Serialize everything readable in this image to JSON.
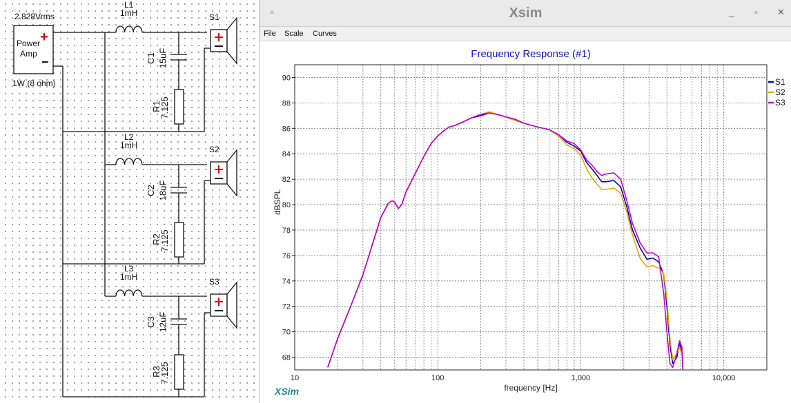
{
  "schematic": {
    "source": {
      "voltage": "2.828Vrms",
      "label_line1": "Power",
      "label_line2": "Amp",
      "plus": "+",
      "minus": "−",
      "load": "1W (8 ohm)"
    },
    "branches": [
      {
        "inductor": "L1",
        "inductor_value": "1mH",
        "capacitor": "C1",
        "capacitor_value": "15uF",
        "resistor": "R1",
        "resistor_value": "7.125",
        "speaker": "S1"
      },
      {
        "inductor": "L2",
        "inductor_value": "1mH",
        "capacitor": "C2",
        "capacitor_value": "18uF",
        "resistor": "R2",
        "resistor_value": "7.125",
        "speaker": "S2"
      },
      {
        "inductor": "L3",
        "inductor_value": "1mH",
        "capacitor": "C3",
        "capacitor_value": "12uF",
        "resistor": "R3",
        "resistor_value": "7.125",
        "speaker": "S3"
      }
    ]
  },
  "window": {
    "title": "Xsim",
    "buttons": {
      "menu": "▫",
      "minimize": "_",
      "maximize": "▫",
      "close": "✕"
    },
    "menu": [
      {
        "label": "File"
      },
      {
        "label": "Scale"
      },
      {
        "label": "Curves"
      }
    ],
    "brand": "XSim"
  },
  "chart_data": {
    "type": "line",
    "title": "Frequency Response (#1)",
    "xlabel": "frequency [Hz]",
    "ylabel": "dBSPL",
    "xscale": "log",
    "xlim": [
      10,
      20000
    ],
    "ylim": [
      67,
      91
    ],
    "x_ticks": [
      {
        "v": 10,
        "label": "10"
      },
      {
        "v": 100,
        "label": "100"
      },
      {
        "v": 1000,
        "label": "1,000"
      },
      {
        "v": 10000,
        "label": "10,000"
      }
    ],
    "y_ticks": [
      68,
      70,
      72,
      74,
      76,
      78,
      80,
      82,
      84,
      86,
      88,
      90
    ],
    "grid": true,
    "legend_position": "right",
    "colors": {
      "title": "#1010d0",
      "S1": "#0000cc",
      "S2": "#e0a800",
      "S3": "#cc00cc",
      "grid": "#777777"
    },
    "series": [
      {
        "name": "S1",
        "color": "#0000cc",
        "points": [
          [
            17,
            67.2
          ],
          [
            20,
            69.5
          ],
          [
            25,
            72.2
          ],
          [
            30,
            74.5
          ],
          [
            35,
            76.9
          ],
          [
            40,
            79.0
          ],
          [
            45,
            80.1
          ],
          [
            48,
            80.3
          ],
          [
            50,
            80.2
          ],
          [
            53,
            79.7
          ],
          [
            56,
            80.0
          ],
          [
            60,
            81.0
          ],
          [
            70,
            82.5
          ],
          [
            80,
            83.8
          ],
          [
            90,
            84.8
          ],
          [
            100,
            85.4
          ],
          [
            110,
            85.8
          ],
          [
            120,
            86.1
          ],
          [
            130,
            86.2
          ],
          [
            150,
            86.5
          ],
          [
            170,
            86.8
          ],
          [
            200,
            87.0
          ],
          [
            230,
            87.2
          ],
          [
            260,
            87.1
          ],
          [
            300,
            86.9
          ],
          [
            350,
            86.7
          ],
          [
            400,
            86.4
          ],
          [
            500,
            86.1
          ],
          [
            600,
            85.9
          ],
          [
            700,
            85.5
          ],
          [
            800,
            84.9
          ],
          [
            900,
            84.6
          ],
          [
            1000,
            84.2
          ],
          [
            1100,
            83.3
          ],
          [
            1200,
            82.8
          ],
          [
            1300,
            82.3
          ],
          [
            1400,
            81.8
          ],
          [
            1500,
            81.8
          ],
          [
            1700,
            81.9
          ],
          [
            1900,
            81.4
          ],
          [
            2100,
            79.8
          ],
          [
            2300,
            78.0
          ],
          [
            2600,
            76.6
          ],
          [
            2900,
            75.7
          ],
          [
            3200,
            75.8
          ],
          [
            3500,
            75.5
          ],
          [
            3800,
            74.5
          ],
          [
            4000,
            72.0
          ],
          [
            4200,
            69.0
          ],
          [
            4400,
            67.5
          ],
          [
            4700,
            68.0
          ],
          [
            4900,
            69.1
          ],
          [
            5100,
            68.5
          ],
          [
            5200,
            66.5
          ]
        ]
      },
      {
        "name": "S2",
        "color": "#e0a800",
        "points": [
          [
            17,
            67.2
          ],
          [
            20,
            69.5
          ],
          [
            25,
            72.2
          ],
          [
            30,
            74.5
          ],
          [
            35,
            76.9
          ],
          [
            40,
            79.0
          ],
          [
            45,
            80.1
          ],
          [
            48,
            80.3
          ],
          [
            50,
            80.2
          ],
          [
            53,
            79.7
          ],
          [
            56,
            80.0
          ],
          [
            60,
            81.0
          ],
          [
            70,
            82.5
          ],
          [
            80,
            83.8
          ],
          [
            90,
            84.8
          ],
          [
            100,
            85.4
          ],
          [
            110,
            85.8
          ],
          [
            120,
            86.1
          ],
          [
            130,
            86.2
          ],
          [
            150,
            86.5
          ],
          [
            170,
            86.8
          ],
          [
            200,
            87.1
          ],
          [
            230,
            87.3
          ],
          [
            260,
            87.1
          ],
          [
            300,
            86.9
          ],
          [
            350,
            86.6
          ],
          [
            400,
            86.4
          ],
          [
            500,
            86.1
          ],
          [
            600,
            85.9
          ],
          [
            700,
            85.4
          ],
          [
            800,
            84.7
          ],
          [
            900,
            84.4
          ],
          [
            1000,
            83.9
          ],
          [
            1100,
            82.8
          ],
          [
            1200,
            82.1
          ],
          [
            1300,
            81.6
          ],
          [
            1400,
            81.2
          ],
          [
            1500,
            81.2
          ],
          [
            1700,
            81.3
          ],
          [
            1900,
            80.9
          ],
          [
            2100,
            79.4
          ],
          [
            2300,
            77.6
          ],
          [
            2600,
            75.8
          ],
          [
            2900,
            75.1
          ],
          [
            3200,
            75.2
          ],
          [
            3500,
            75.0
          ],
          [
            3800,
            74.6
          ],
          [
            4000,
            72.6
          ],
          [
            4200,
            69.5
          ],
          [
            4400,
            67.8
          ],
          [
            4700,
            68.3
          ],
          [
            4900,
            68.8
          ],
          [
            5100,
            68.2
          ],
          [
            5200,
            66.5
          ]
        ]
      },
      {
        "name": "S3",
        "color": "#cc00cc",
        "points": [
          [
            17,
            67.2
          ],
          [
            20,
            69.5
          ],
          [
            25,
            72.2
          ],
          [
            30,
            74.5
          ],
          [
            35,
            76.9
          ],
          [
            40,
            79.0
          ],
          [
            45,
            80.1
          ],
          [
            48,
            80.3
          ],
          [
            50,
            80.2
          ],
          [
            53,
            79.7
          ],
          [
            56,
            80.0
          ],
          [
            60,
            81.0
          ],
          [
            70,
            82.5
          ],
          [
            80,
            83.8
          ],
          [
            90,
            84.8
          ],
          [
            100,
            85.4
          ],
          [
            110,
            85.8
          ],
          [
            120,
            86.1
          ],
          [
            130,
            86.2
          ],
          [
            150,
            86.5
          ],
          [
            170,
            86.8
          ],
          [
            200,
            87.1
          ],
          [
            230,
            87.2
          ],
          [
            260,
            87.1
          ],
          [
            300,
            86.9
          ],
          [
            350,
            86.7
          ],
          [
            400,
            86.4
          ],
          [
            500,
            86.1
          ],
          [
            600,
            85.9
          ],
          [
            700,
            85.5
          ],
          [
            800,
            85.0
          ],
          [
            900,
            84.8
          ],
          [
            1000,
            84.3
          ],
          [
            1100,
            83.5
          ],
          [
            1200,
            83.1
          ],
          [
            1300,
            82.6
          ],
          [
            1400,
            82.3
          ],
          [
            1500,
            82.4
          ],
          [
            1700,
            82.5
          ],
          [
            1900,
            82.0
          ],
          [
            2100,
            80.3
          ],
          [
            2300,
            78.5
          ],
          [
            2600,
            77.0
          ],
          [
            2900,
            76.2
          ],
          [
            3200,
            76.2
          ],
          [
            3500,
            75.9
          ],
          [
            3800,
            73.0
          ],
          [
            4000,
            70.0
          ],
          [
            4200,
            67.5
          ],
          [
            4400,
            67.2
          ],
          [
            4700,
            68.3
          ],
          [
            4900,
            69.3
          ],
          [
            5100,
            68.8
          ],
          [
            5200,
            66.5
          ]
        ]
      }
    ]
  }
}
